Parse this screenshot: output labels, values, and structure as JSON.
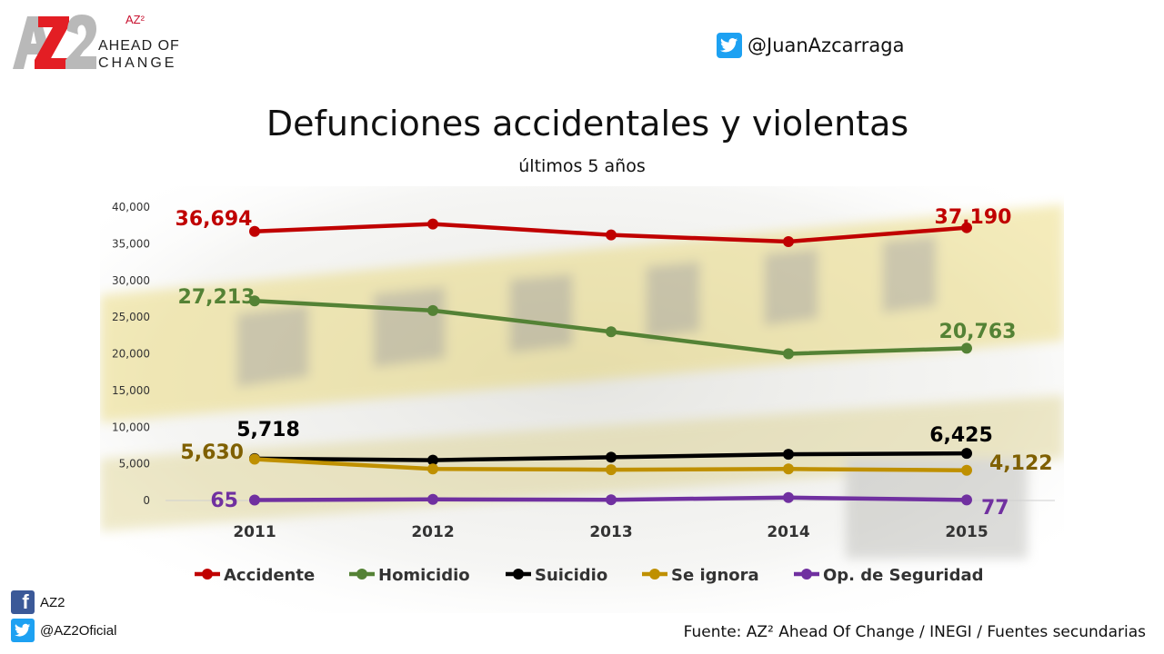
{
  "brand": {
    "logo_text": "AZ2",
    "sup": "AZ²",
    "line1": "AHEAD OF",
    "line2": "CHANGE"
  },
  "handle_top": "@JuanAzcarraga",
  "social": {
    "facebook": "AZ2",
    "twitter": "@AZ2Oficial"
  },
  "source": "Fuente: AZ² Ahead Of Change / INEGI / Fuentes secundarias",
  "colors": {
    "accidente": "#c00000",
    "homicidio": "#548235",
    "suicidio": "#000000",
    "se_ignora": "#bf9000",
    "op_seguridad": "#7030a0"
  },
  "chart_data": {
    "type": "line",
    "title": "Defunciones accidentales y violentas",
    "subtitle": "últimos 5 años",
    "x": [
      "2011",
      "2012",
      "2013",
      "2014",
      "2015"
    ],
    "ylim": [
      0,
      40000
    ],
    "yticks": [
      "0",
      "5,000",
      "10,000",
      "15,000",
      "20,000",
      "25,000",
      "30,000",
      "35,000",
      "40,000"
    ],
    "grid": false,
    "legend_position": "bottom",
    "series": [
      {
        "name": "Accidente",
        "color": "#c00000",
        "values": [
          36694,
          37700,
          36200,
          35300,
          37190
        ],
        "labels": [
          "36,694",
          "",
          "",
          "",
          "37,190"
        ]
      },
      {
        "name": "Homicidio",
        "color": "#548235",
        "values": [
          27213,
          25900,
          23000,
          20000,
          20763
        ],
        "labels": [
          "27,213",
          "",
          "",
          "",
          "20,763"
        ]
      },
      {
        "name": "Suicidio",
        "color": "#000000",
        "values": [
          5718,
          5500,
          5900,
          6300,
          6425
        ],
        "labels": [
          "5,718",
          "",
          "",
          "",
          "6,425"
        ]
      },
      {
        "name": "Se ignora",
        "color": "#bf9000",
        "values": [
          5630,
          4300,
          4200,
          4300,
          4122
        ],
        "labels": [
          "5,630",
          "",
          "",
          "",
          "4,122"
        ]
      },
      {
        "name": "Op. de Seguridad",
        "color": "#7030a0",
        "values": [
          65,
          150,
          100,
          400,
          77
        ],
        "labels": [
          "65",
          "",
          "",
          "",
          "77"
        ]
      }
    ]
  }
}
